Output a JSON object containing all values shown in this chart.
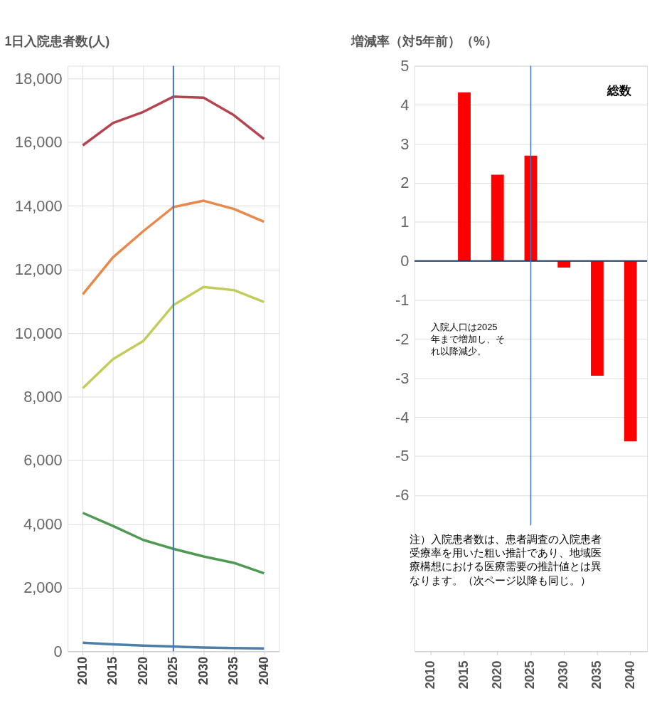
{
  "chart_data": [
    {
      "type": "line",
      "ylabel": "1日入院患者数(人)",
      "x": [
        2010,
        2015,
        2020,
        2025,
        2030,
        2035,
        2040
      ],
      "xlim": [
        2007.5,
        2042.5
      ],
      "xticks": [
        2010,
        2015,
        2020,
        2025,
        2030,
        2035,
        2040
      ],
      "ylim": [
        0,
        18400
      ],
      "yticks": [
        {
          "value": 0,
          "label": "0"
        },
        {
          "value": 2000,
          "label": "2,000"
        },
        {
          "value": 4000,
          "label": "4,000"
        },
        {
          "value": 6000,
          "label": "6,000"
        },
        {
          "value": 8000,
          "label": "8,000"
        },
        {
          "value": 10000,
          "label": "10,000"
        },
        {
          "value": 12000,
          "label": "12,000"
        },
        {
          "value": 14000,
          "label": "14,000"
        },
        {
          "value": 16000,
          "label": "16,000"
        },
        {
          "value": 18000,
          "label": "18,000"
        }
      ],
      "grid": true,
      "marker": "none",
      "line_style": "solid",
      "series": [
        {
          "color": "#b5444f",
          "values": [
            15900,
            16600,
            16950,
            17430,
            17400,
            16850,
            16100
          ]
        },
        {
          "color": "#e8894a",
          "values": [
            11220,
            12380,
            13200,
            13960,
            14160,
            13900,
            13500
          ]
        },
        {
          "color": "#c3cc5a",
          "values": [
            8270,
            9180,
            9750,
            10880,
            11450,
            11350,
            10980
          ]
        },
        {
          "color": "#4e9a52",
          "values": [
            4350,
            3940,
            3500,
            3220,
            2980,
            2780,
            2450
          ]
        },
        {
          "color": "#4d7fa8",
          "values": [
            270,
            220,
            180,
            150,
            120,
            100,
            90
          ]
        }
      ],
      "ref_lines": [
        {
          "axis": "x",
          "value": 2025,
          "color": "#4472c4"
        }
      ]
    },
    {
      "type": "bar",
      "ylabel": "増減率（対5年前）（%）",
      "categories": [
        "2010",
        "2015",
        "2020",
        "2025",
        "2030",
        "2035",
        "2040"
      ],
      "values": [
        null,
        4.32,
        2.21,
        2.7,
        -0.17,
        -2.94,
        -4.62
      ],
      "color": "#ff0000",
      "ylim": [
        -10,
        5
      ],
      "yticks": [
        -6,
        -5,
        -4,
        -3,
        -2,
        -1,
        0,
        1,
        2,
        3,
        4,
        5
      ],
      "grid": "y",
      "ref_lines": [
        {
          "axis": "y",
          "value": 0,
          "color": "#1f3864"
        },
        {
          "axis": "x",
          "value": "2025",
          "color": "#4472c4"
        }
      ],
      "annotations": [
        "総数",
        "入院人口は2025年まで増加し、それ以降減少。",
        "注）入院患者数は、患者調査の入院患者受療率を用いた粗い推計であり、地域医療構想における医療需要の推計値とは異なります。（次ページ以降も同じ。）"
      ]
    }
  ]
}
